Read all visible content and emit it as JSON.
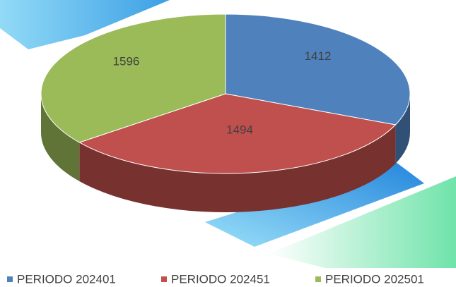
{
  "chart_data": {
    "type": "pie3d",
    "categories": [
      "PERIODO 202401",
      "PERIODO 202451",
      "PERIODO 202501"
    ],
    "values": [
      1412,
      1494,
      1596
    ],
    "colors": [
      "#4f81bd",
      "#c0504d",
      "#9bbb59"
    ],
    "legend": "bottom"
  }
}
